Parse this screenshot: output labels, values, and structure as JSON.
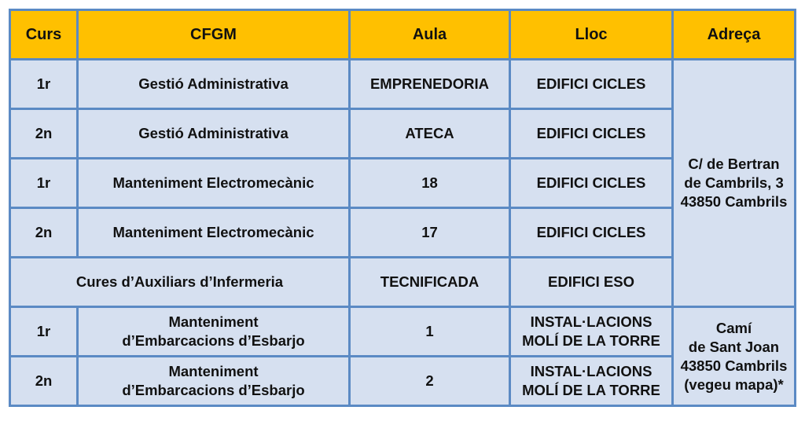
{
  "table": {
    "headers": [
      "Curs",
      "CFGM",
      "Aula",
      "Lloc",
      "Adreça"
    ],
    "rows": [
      {
        "curs": "1r",
        "cfgm": "Gestió Administrativa",
        "aula": "EMPRENEDORIA",
        "lloc": "EDIFICI CICLES"
      },
      {
        "curs": "2n",
        "cfgm": "Gestió Administrativa",
        "aula": "ATECA",
        "lloc": "EDIFICI CICLES"
      },
      {
        "curs": "1r",
        "cfgm": "Manteniment Electromecànic",
        "aula": "18",
        "lloc": "EDIFICI CICLES"
      },
      {
        "curs": "2n",
        "cfgm": "Manteniment Electromecànic",
        "aula": "17",
        "lloc": "EDIFICI CICLES"
      },
      {
        "curs": "",
        "cfgm": "Cures d’Auxiliars d’Infermeria",
        "aula": "TECNIFICADA",
        "lloc": "EDIFICI ESO"
      },
      {
        "curs": "1r",
        "cfgm_line1": "Manteniment",
        "cfgm_line2": "d’Embarcacions d’Esbarjo",
        "aula": "1",
        "lloc_line1": "INSTAL·LACIONS",
        "lloc_line2": "MOLÍ DE LA TORRE"
      },
      {
        "curs": "2n",
        "cfgm_line1": "Manteniment",
        "cfgm_line2": "d’Embarcacions d’Esbarjo",
        "aula": "2",
        "lloc_line1": "INSTAL·LACIONS",
        "lloc_line2": "MOLÍ DE LA TORRE"
      }
    ],
    "address1": [
      "C/ de Bertran",
      "de Cambrils, 3",
      "43850 Cambrils"
    ],
    "address2": [
      "Camí",
      "de Sant Joan",
      "43850 Cambrils",
      "(vegeu mapa)*"
    ]
  },
  "colors": {
    "header": "#ffc000",
    "body": "#d6e0f0",
    "border": "#5b8ac4"
  }
}
